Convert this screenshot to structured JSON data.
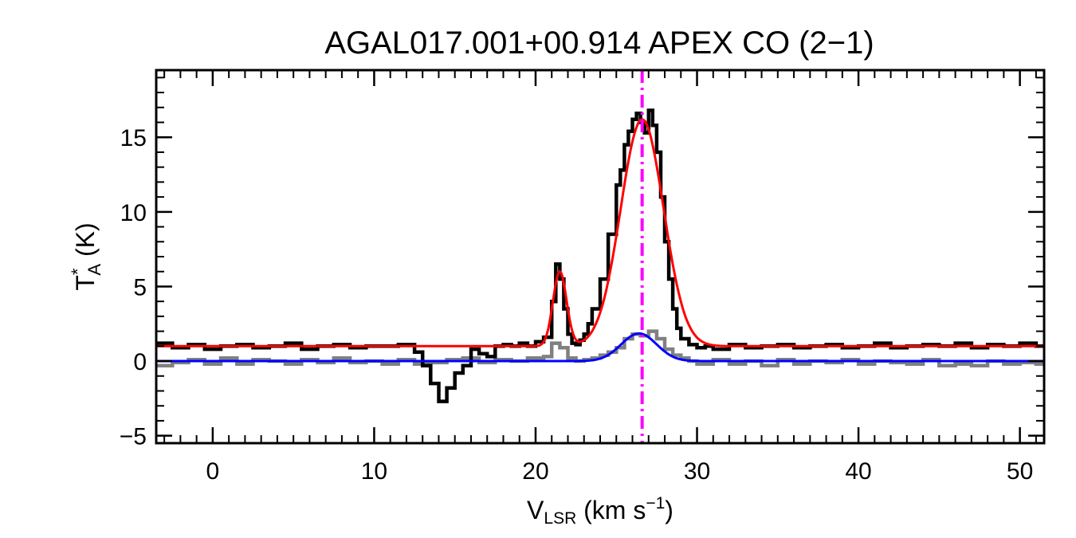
{
  "chart_data": {
    "type": "line",
    "title": "AGAL017.001+00.914  APEX CO (2−1)",
    "xlabel": {
      "main": "V",
      "sub": "LSR",
      "rest": " (km s",
      "sup": "−1",
      "end": ")"
    },
    "ylabel": {
      "main": "T",
      "sup": "*",
      "sub": "A",
      "rest": " (K)"
    },
    "xlim": [
      -3.5,
      51.5
    ],
    "ylim": [
      -5.5,
      19.5
    ],
    "xticks": [
      0,
      10,
      20,
      30,
      40,
      50
    ],
    "xtick_labels": [
      "0",
      "10",
      "20",
      "30",
      "40",
      "50"
    ],
    "yticks": [
      -5,
      0,
      5,
      10,
      15
    ],
    "ytick_labels": [
      "−5",
      "0",
      "5",
      "10",
      "15"
    ],
    "x_minor_step": 1,
    "y_minor_step": 1,
    "grid": false,
    "marker_velocity": 26.6,
    "series": [
      {
        "id": "observed",
        "kind": "step",
        "color": "#000000",
        "x": [
          -3.5,
          -2.5,
          -1.5,
          -0.5,
          0.5,
          1.5,
          2.5,
          3.5,
          4.5,
          5.5,
          6.5,
          7.5,
          8.5,
          9.5,
          10.5,
          11.5,
          12.5,
          13.0,
          13.5,
          14.0,
          14.5,
          15.0,
          15.5,
          16.0,
          16.5,
          17.0,
          17.5,
          18.0,
          18.5,
          19.0,
          19.5,
          20.0,
          20.5,
          21.0,
          21.25,
          21.5,
          21.75,
          22.0,
          22.25,
          22.5,
          22.75,
          23.0,
          23.25,
          23.5,
          24.0,
          24.5,
          25.0,
          25.25,
          25.5,
          25.75,
          26.0,
          26.25,
          26.5,
          26.75,
          27.0,
          27.25,
          27.5,
          27.75,
          28.0,
          28.25,
          28.5,
          28.75,
          29.0,
          29.5,
          30.0,
          30.5,
          31.0,
          32.0,
          33.0,
          34.0,
          35.0,
          36.0,
          37.0,
          38.0,
          39.0,
          40.0,
          41.0,
          42.0,
          43.0,
          44.0,
          45.0,
          46.0,
          47.0,
          48.0,
          49.0,
          50.0,
          51.0,
          51.5
        ],
        "y": [
          1.2,
          0.9,
          1.1,
          0.8,
          1.0,
          1.1,
          0.9,
          1.0,
          1.2,
          0.8,
          1.0,
          1.1,
          0.9,
          1.0,
          1.0,
          1.1,
          0.6,
          -0.3,
          -1.5,
          -2.7,
          -1.8,
          -0.8,
          -0.3,
          0.8,
          0.5,
          0.3,
          1.0,
          1.1,
          1.0,
          1.2,
          1.0,
          1.3,
          1.6,
          4.0,
          6.5,
          5.5,
          3.5,
          1.8,
          1.2,
          1.1,
          1.4,
          1.8,
          2.5,
          3.5,
          5.5,
          8.5,
          11.8,
          12.8,
          14.5,
          15.4,
          16.2,
          16.6,
          16.0,
          15.3,
          16.8,
          15.8,
          14.0,
          11.0,
          8.0,
          5.5,
          3.5,
          2.2,
          1.5,
          1.1,
          0.9,
          1.0,
          0.8,
          1.1,
          0.9,
          1.0,
          1.1,
          0.9,
          1.0,
          1.1,
          0.9,
          1.0,
          1.2,
          0.9,
          1.0,
          1.1,
          1.0,
          1.2,
          0.9,
          1.1,
          1.0,
          1.2,
          1.0,
          1.1
        ]
      },
      {
        "id": "reference",
        "kind": "step",
        "color": "#808080",
        "x": [
          -3.5,
          -2.5,
          -1.5,
          -0.5,
          0.5,
          1.5,
          2.5,
          3.5,
          4.5,
          5.5,
          6.5,
          7.5,
          8.5,
          9.5,
          10.5,
          11.5,
          12.5,
          13.5,
          14.5,
          15.5,
          16.5,
          17.5,
          18.5,
          19.5,
          20.5,
          21.0,
          21.5,
          22.0,
          22.5,
          23.0,
          23.5,
          24.0,
          24.5,
          25.0,
          25.5,
          26.0,
          26.5,
          27.0,
          27.5,
          28.0,
          28.5,
          29.0,
          29.5,
          30.0,
          31.0,
          32.0,
          33.0,
          34.0,
          35.0,
          36.0,
          37.0,
          38.0,
          39.0,
          40.0,
          41.0,
          42.0,
          43.0,
          44.0,
          45.0,
          46.0,
          47.0,
          48.0,
          49.0,
          50.0,
          51.0,
          51.5
        ],
        "y": [
          -0.3,
          -0.1,
          0.1,
          -0.2,
          0.2,
          -0.2,
          0.1,
          0.0,
          -0.2,
          0.1,
          -0.1,
          0.2,
          -0.1,
          0.0,
          -0.2,
          0.1,
          -0.2,
          -0.1,
          0.1,
          0.2,
          -0.1,
          0.1,
          0.0,
          0.2,
          0.3,
          1.2,
          0.9,
          0.2,
          0.0,
          0.1,
          0.2,
          0.4,
          0.6,
          0.9,
          1.5,
          1.8,
          1.7,
          2.0,
          1.5,
          0.8,
          0.4,
          0.2,
          0.0,
          -0.2,
          0.1,
          -0.2,
          0.0,
          -0.3,
          0.1,
          -0.2,
          0.0,
          -0.1,
          0.1,
          -0.2,
          0.0,
          -0.1,
          -0.2,
          0.1,
          -0.3,
          -0.2,
          -0.3,
          0.0,
          -0.2,
          -0.1,
          -0.2,
          -0.3
        ]
      },
      {
        "id": "fit-total",
        "kind": "gaussian",
        "color": "#ff0000",
        "baseline": 1.0,
        "components": [
          {
            "amp": 5.0,
            "center": 21.5,
            "sigma": 0.42
          },
          {
            "amp": 15.2,
            "center": 26.6,
            "sigma": 1.33
          }
        ]
      },
      {
        "id": "fit-reference",
        "kind": "gaussian",
        "color": "#0000ff",
        "baseline": 0.0,
        "components": [
          {
            "amp": 1.85,
            "center": 26.4,
            "sigma": 1.1
          }
        ]
      }
    ]
  }
}
